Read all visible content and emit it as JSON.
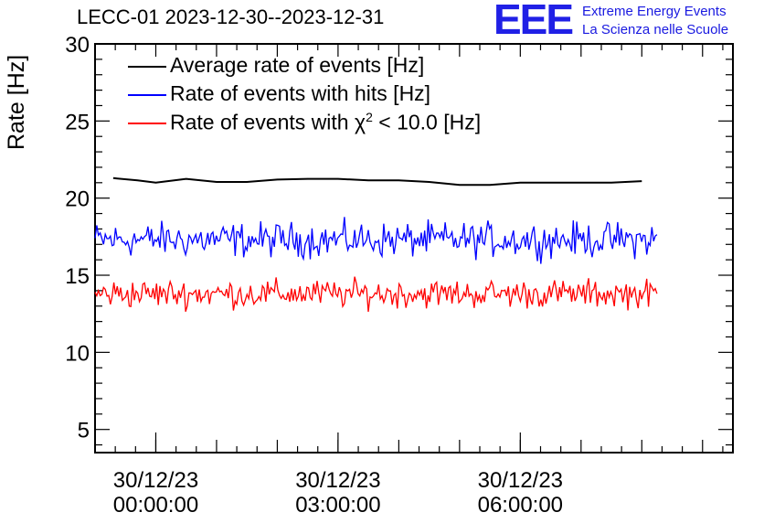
{
  "title": "LECC-01 2023-12-30--2023-12-31",
  "logo": {
    "mark": "EEE",
    "line1": "Extreme Energy Events",
    "line2": "La Scienza nelle Scuole"
  },
  "legend": [
    {
      "label": "Average rate of events [Hz]",
      "color": "#000000"
    },
    {
      "label": "Rate of events with hits [Hz]",
      "color": "#0000ff"
    },
    {
      "label_prefix": "Rate of events with ",
      "chi": "χ",
      "sup": "2",
      "label_suffix": " < 10.0 [Hz]",
      "color": "#ff0000"
    }
  ],
  "chart_data": {
    "type": "line",
    "title": "LECC-01 2023-12-30--2023-12-31",
    "ylabel": "Rate [Hz]",
    "xlabel": "",
    "x_unit": "hours since 30/12/23 00:00:00",
    "xlim": [
      -1.0,
      9.5
    ],
    "ylim": [
      3.5,
      30
    ],
    "yticks": [
      5,
      10,
      15,
      20,
      25,
      30
    ],
    "xticks": [
      {
        "value": 0,
        "line1": "30/12/23",
        "line2": "00:00:00"
      },
      {
        "value": 3,
        "line1": "30/12/23",
        "line2": "03:00:00"
      },
      {
        "value": 6,
        "line1": "30/12/23",
        "line2": "06:00:00"
      }
    ],
    "grid": false,
    "legend_position": "top-left",
    "series": [
      {
        "name": "Average rate of events [Hz]",
        "color": "#000000",
        "style": "smooth",
        "x": [
          -0.7,
          -0.3,
          0.0,
          0.5,
          1.0,
          1.5,
          2.0,
          2.5,
          3.0,
          3.5,
          4.0,
          4.5,
          5.0,
          5.5,
          6.0,
          6.5,
          7.0,
          7.5,
          8.0
        ],
        "y": [
          21.3,
          21.15,
          21.0,
          21.25,
          21.05,
          21.05,
          21.2,
          21.25,
          21.25,
          21.15,
          21.15,
          21.05,
          20.85,
          20.85,
          21.0,
          21.0,
          21.0,
          21.0,
          21.1
        ]
      },
      {
        "name": "Rate of events with hits [Hz]",
        "color": "#0000ff",
        "style": "noisy",
        "x_start": -1.0,
        "x_end": 8.25,
        "mean": 17.3,
        "spread": 0.55,
        "points": 330
      },
      {
        "name": "Rate of events with χ2 < 10.0 [Hz]",
        "color": "#ff0000",
        "style": "noisy",
        "x_start": -1.0,
        "x_end": 8.25,
        "mean": 13.8,
        "spread": 0.45,
        "points": 330
      }
    ]
  }
}
